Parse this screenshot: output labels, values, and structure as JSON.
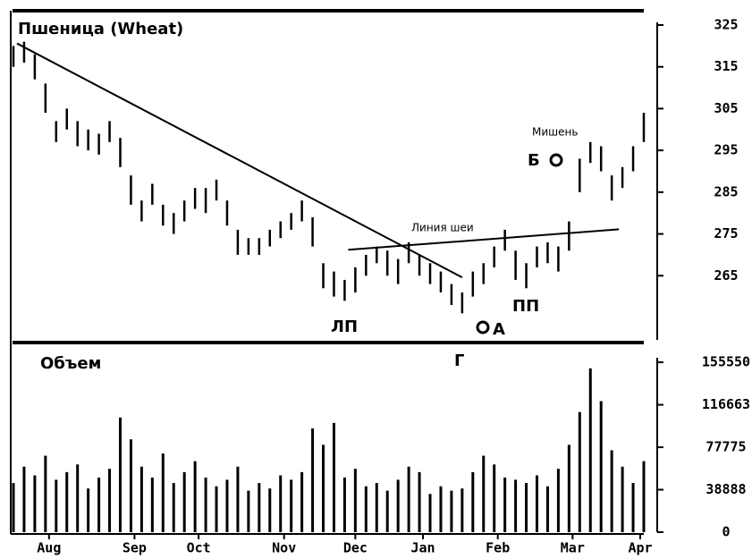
{
  "chart_data": [
    {
      "type": "range",
      "title": "Пшеница (Wheat)",
      "x": [
        0,
        3,
        6,
        9,
        12,
        15,
        18,
        21,
        24,
        27,
        30,
        33,
        36,
        39,
        42,
        45,
        48,
        51,
        54,
        57,
        60,
        63,
        66,
        69,
        72,
        75,
        78,
        81,
        84,
        87,
        90,
        93,
        96,
        99,
        102,
        105,
        108,
        111,
        114,
        117,
        120,
        123,
        126,
        129,
        132,
        135,
        138,
        141,
        144,
        147,
        150,
        153,
        156,
        159,
        162,
        165,
        168,
        171,
        174,
        177
      ],
      "high": [
        320,
        321,
        318,
        311,
        302,
        305,
        302,
        300,
        299,
        302,
        298,
        289,
        283,
        287,
        282,
        280,
        283,
        286,
        286,
        288,
        283,
        276,
        274,
        274,
        276,
        278,
        280,
        283,
        279,
        268,
        266,
        264,
        267,
        270,
        272,
        271,
        269,
        273,
        270,
        268,
        266,
        263,
        261,
        266,
        268,
        272,
        276,
        271,
        268,
        272,
        273,
        272,
        278,
        293,
        297,
        296,
        289,
        291,
        296,
        304
      ],
      "low": [
        315,
        316,
        312,
        304,
        297,
        300,
        296,
        295,
        294,
        297,
        291,
        282,
        278,
        282,
        277,
        275,
        278,
        281,
        280,
        283,
        277,
        270,
        270,
        270,
        272,
        274,
        276,
        278,
        272,
        262,
        260,
        259,
        261,
        265,
        268,
        265,
        263,
        268,
        265,
        263,
        261,
        258,
        256,
        260,
        263,
        267,
        271,
        264,
        262,
        267,
        268,
        266,
        271,
        285,
        292,
        290,
        283,
        286,
        290,
        297
      ],
      "color": "#000000",
      "xlim": [
        0,
        177
      ],
      "ylim": [
        249,
        328
      ],
      "yticks": [
        265,
        275,
        285,
        295,
        305,
        315,
        325
      ],
      "lines": [
        {
          "x": [
            1,
            126
          ],
          "y": [
            320.6,
            264.6
          ]
        },
        {
          "x": [
            94,
            170
          ],
          "y": [
            271.2,
            276.1
          ]
        }
      ],
      "annotations": [
        "Линия шеи",
        "Мишень",
        "Б",
        "ЛП",
        "ПП",
        "А",
        "Г"
      ]
    },
    {
      "type": "bar",
      "title": "Объем",
      "x": [
        0,
        3,
        6,
        9,
        12,
        15,
        18,
        21,
        24,
        27,
        30,
        33,
        36,
        39,
        42,
        45,
        48,
        51,
        54,
        57,
        60,
        63,
        66,
        69,
        72,
        75,
        78,
        81,
        84,
        87,
        90,
        93,
        96,
        99,
        102,
        105,
        108,
        111,
        114,
        117,
        120,
        123,
        126,
        129,
        132,
        135,
        138,
        141,
        144,
        147,
        150,
        153,
        156,
        159,
        162,
        165,
        168,
        171,
        174,
        177
      ],
      "values": [
        45000,
        60000,
        52000,
        70000,
        48000,
        55000,
        62000,
        40000,
        50000,
        58000,
        105000,
        85000,
        60000,
        50000,
        72000,
        45000,
        55000,
        65000,
        50000,
        42000,
        48000,
        60000,
        38000,
        45000,
        40000,
        52000,
        48000,
        55000,
        95000,
        80000,
        100000,
        50000,
        58000,
        42000,
        45000,
        38000,
        48000,
        60000,
        55000,
        35000,
        42000,
        38000,
        40000,
        55000,
        70000,
        62000,
        50000,
        48000,
        45000,
        52000,
        42000,
        58000,
        80000,
        110000,
        150000,
        120000,
        75000,
        60000,
        45000,
        65000
      ],
      "color": "#000000",
      "xlim": [
        0,
        177
      ],
      "ylim": [
        0,
        172000
      ],
      "yticks": [
        0,
        38888,
        77775,
        116663,
        155550
      ],
      "xticks": [
        {
          "value": 10,
          "label": "Aug"
        },
        {
          "value": 34,
          "label": "Sep"
        },
        {
          "value": 52,
          "label": "Oct"
        },
        {
          "value": 76,
          "label": "Nov"
        },
        {
          "value": 96,
          "label": "Dec"
        },
        {
          "value": 115,
          "label": "Jan"
        },
        {
          "value": 136,
          "label": "Feb"
        },
        {
          "value": 157,
          "label": "Mar"
        },
        {
          "value": 176,
          "label": "Apr"
        }
      ]
    }
  ]
}
